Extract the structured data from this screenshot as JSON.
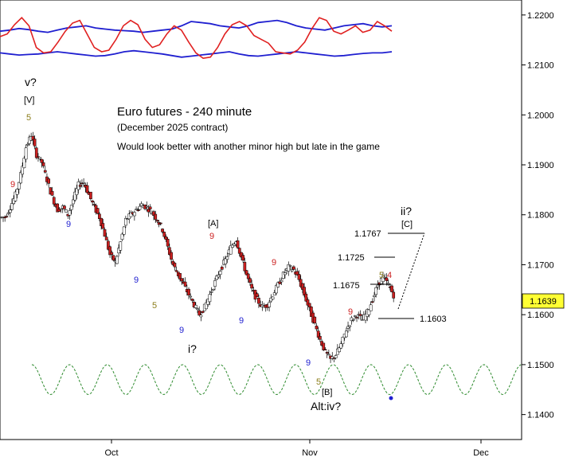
{
  "chart_data": {
    "type": "candlestick",
    "title": "Euro futures - 240 minute",
    "subtitle": "(December 2025 contract)",
    "comment": "Would look better with another minor high but late in the game",
    "current_price": "1.1639",
    "ylim": [
      1.135,
      1.223
    ],
    "y_ticks": [
      "1.2200",
      "1.2100",
      "1.2000",
      "1.1900",
      "1.1800",
      "1.1700",
      "1.1600",
      "1.1500",
      "1.1400"
    ],
    "x_ticks": [
      "Oct",
      "Nov",
      "Dec"
    ],
    "price_series": {
      "name": "",
      "values": [
        1.1795,
        1.1815,
        1.184,
        1.188,
        1.1935,
        1.196,
        1.192,
        1.1905,
        1.187,
        1.1835,
        1.181,
        1.1815,
        1.18,
        1.183,
        1.186,
        1.1865,
        1.184,
        1.1815,
        1.1795,
        1.176,
        1.172,
        1.1705,
        1.1745,
        1.179,
        1.18,
        1.181,
        1.182,
        1.1815,
        1.1805,
        1.179,
        1.177,
        1.1735,
        1.17,
        1.168,
        1.166,
        1.164,
        1.162,
        1.16,
        1.1615,
        1.164,
        1.1665,
        1.169,
        1.171,
        1.1735,
        1.175,
        1.1715,
        1.168,
        1.165,
        1.163,
        1.1615,
        1.162,
        1.164,
        1.166,
        1.168,
        1.1695,
        1.169,
        1.167,
        1.164,
        1.161,
        1.158,
        1.155,
        1.1525,
        1.151,
        1.152,
        1.154,
        1.157,
        1.159,
        1.16,
        1.159,
        1.1605,
        1.163,
        1.166,
        1.1675,
        1.166,
        1.1639
      ]
    },
    "oscillator_bands": {
      "upper": [
        0.6,
        0.62,
        0.65,
        0.63,
        0.6,
        0.58,
        0.62,
        0.66,
        0.68,
        0.7,
        0.66,
        0.64,
        0.62,
        0.61,
        0.6,
        0.58,
        0.6,
        0.62,
        0.64,
        0.7,
        0.78,
        0.76,
        0.74,
        0.7,
        0.68,
        0.66,
        0.7,
        0.76,
        0.78,
        0.8,
        0.76,
        0.7,
        0.66,
        0.64,
        0.62,
        0.66,
        0.7,
        0.72,
        0.74,
        0.7,
        0.68,
        0.7
      ],
      "lower": [
        0.2,
        0.18,
        0.16,
        0.17,
        0.18,
        0.2,
        0.22,
        0.2,
        0.18,
        0.16,
        0.14,
        0.15,
        0.18,
        0.22,
        0.24,
        0.22,
        0.2,
        0.18,
        0.15,
        0.12,
        0.14,
        0.16,
        0.18,
        0.2,
        0.22,
        0.18,
        0.15,
        0.14,
        0.16,
        0.18,
        0.2,
        0.22,
        0.2,
        0.18,
        0.16,
        0.14,
        0.15,
        0.17,
        0.19,
        0.2,
        0.2,
        0.22
      ],
      "oscillator": [
        0.5,
        0.55,
        0.72,
        0.85,
        0.7,
        0.3,
        0.2,
        0.22,
        0.4,
        0.6,
        0.75,
        0.8,
        0.55,
        0.3,
        0.22,
        0.25,
        0.45,
        0.7,
        0.8,
        0.72,
        0.45,
        0.3,
        0.35,
        0.55,
        0.7,
        0.62,
        0.4,
        0.2,
        0.1,
        0.12,
        0.3,
        0.55,
        0.72,
        0.78,
        0.7,
        0.52,
        0.45,
        0.38,
        0.22,
        0.2,
        0.18,
        0.25,
        0.4,
        0.65,
        0.85,
        0.8,
        0.6,
        0.55,
        0.62,
        0.7,
        0.58,
        0.62,
        0.78,
        0.7,
        0.6
      ],
      "ylim": [
        0,
        1
      ]
    },
    "cycle_line": {
      "amplitude": 0.003,
      "center": 1.147,
      "cycles": 13
    },
    "projection": {
      "levels": [
        {
          "label": "1.1767",
          "value": 1.1767
        },
        {
          "label": "1.1725",
          "value": 1.1725
        },
        {
          "label": "1.1675",
          "value": 1.1675
        },
        {
          "label": "1.1603",
          "value": 1.1603
        }
      ]
    },
    "annotations": {
      "wave_v": "v?",
      "wave_V": "[V]",
      "wave_A": "[A]",
      "wave_i": "i?",
      "wave_B": "[B]",
      "wave_alt": "Alt:iv?",
      "wave_ii": "ii?",
      "wave_C": "[C]",
      "count_9": "9",
      "count_5": "5",
      "count_4": "4"
    },
    "colors": {
      "band": "#1f1fd0",
      "oscillator": "#e02020",
      "up_candle": "#ffffff",
      "down_candle": "#cc2020",
      "cycle": "#2e8b2e",
      "price_tag": "#ffff33",
      "count_red": "#cc2020",
      "count_blue": "#1f1fd0",
      "count_olive": "#8b7d1a"
    }
  }
}
